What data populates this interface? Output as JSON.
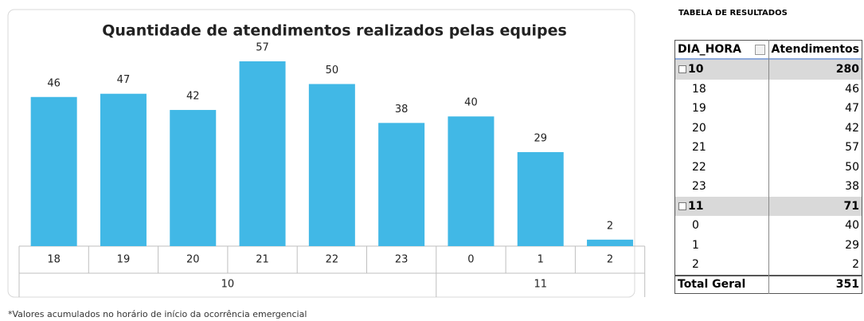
{
  "chart_data": {
    "type": "bar",
    "title": "Quantidade de atendimentos realizados pelas equipes",
    "color": "#41b8e6",
    "groups": [
      {
        "name": "10",
        "categories": [
          "18",
          "19",
          "20",
          "21",
          "22",
          "23"
        ],
        "values": [
          46,
          47,
          42,
          57,
          50,
          38
        ]
      },
      {
        "name": "11",
        "categories": [
          "0",
          "1",
          "2"
        ],
        "values": [
          40,
          29,
          2
        ]
      }
    ]
  },
  "table": {
    "title": "TABELA DE RESULTADOS",
    "headers": [
      "DIA_HORA",
      "Atendimentos"
    ],
    "groups": [
      {
        "label": "10",
        "total": "280",
        "rows": [
          [
            "18",
            "46"
          ],
          [
            "19",
            "47"
          ],
          [
            "20",
            "42"
          ],
          [
            "21",
            "57"
          ],
          [
            "22",
            "50"
          ],
          [
            "23",
            "38"
          ]
        ]
      },
      {
        "label": "11",
        "total": "71",
        "rows": [
          [
            "0",
            "40"
          ],
          [
            "1",
            "29"
          ],
          [
            "2",
            "2"
          ]
        ]
      }
    ],
    "total": {
      "label": "Total Geral",
      "value": "351"
    }
  },
  "footnote": "*Valores acumulados no horário de início da ocorrência emergencial"
}
